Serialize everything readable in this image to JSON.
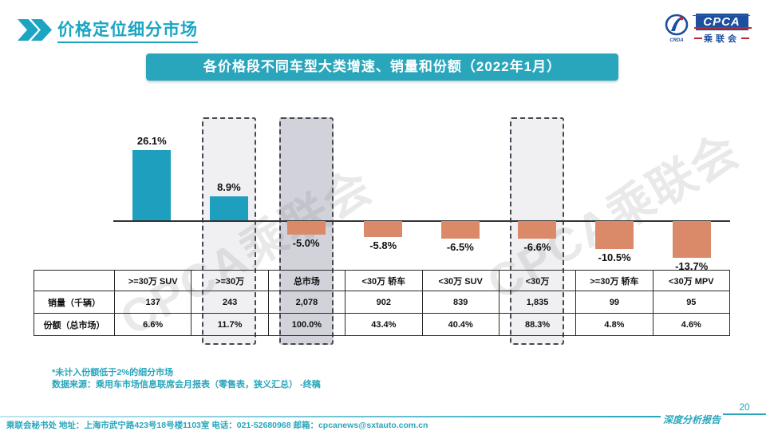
{
  "slide": {
    "title": "价格定位细分市场",
    "banner": "各价格段不同车型大类增速、销量和份额（2022年1月）",
    "watermark": "CPCA乘联会",
    "page_number": "20",
    "report_label": "深度分析报告"
  },
  "logo": {
    "emblem_text": "CRDA",
    "cpca": "CPCA",
    "cn": "乘联会"
  },
  "chart_data": {
    "type": "bar",
    "title": "各价格段不同车型大类增速、销量和份额（2022年1月）",
    "categories": [
      ">=30万 SUV",
      ">=30万",
      "总市场",
      "<30万 轿车",
      "<30万 SUV",
      "<30万",
      ">=30万 轿车",
      "<30万 MPV"
    ],
    "series": [
      {
        "name": "增速",
        "values": [
          26.1,
          8.9,
          -5.0,
          -5.8,
          -6.5,
          -6.6,
          -10.5,
          -13.7
        ],
        "labels": [
          "26.1%",
          "8.9%",
          "-5.0%",
          "-5.8%",
          "-6.5%",
          "-6.6%",
          "-10.5%",
          "-13.7%"
        ]
      },
      {
        "name": "销量（千辆）",
        "values": [
          137,
          243,
          2078,
          902,
          839,
          1835,
          99,
          95
        ]
      },
      {
        "name": "份额（总市场）",
        "values": [
          6.6,
          11.7,
          100.0,
          43.4,
          40.4,
          88.3,
          4.8,
          4.6
        ]
      }
    ],
    "highlights": [
      {
        "category": ">=30万",
        "index": 1,
        "fill": "#F0F0F3"
      },
      {
        "category": "总市场",
        "index": 2,
        "fill": "#D2D2DB"
      },
      {
        "category": "<30万",
        "index": 5,
        "fill": "#F0F0F3"
      }
    ],
    "colors": {
      "positive": "#1F9FBE",
      "negative": "#DB8A69"
    },
    "ylim": [
      -15,
      30
    ],
    "grid": false,
    "legend": false
  },
  "table": {
    "headers": [
      "",
      ">=30万 SUV",
      ">=30万",
      "总市场",
      "<30万 轿车",
      "<30万 SUV",
      "<30万",
      ">=30万 轿车",
      "<30万 MPV"
    ],
    "rows": [
      {
        "label": "销量（千辆）",
        "values": [
          "137",
          "243",
          "2,078",
          "902",
          "839",
          "1,835",
          "99",
          "95"
        ]
      },
      {
        "label": "份额（总市场）",
        "values": [
          "6.6%",
          "11.7%",
          "100.0%",
          "43.4%",
          "40.4%",
          "88.3%",
          "4.8%",
          "4.6%"
        ]
      }
    ]
  },
  "footnotes": [
    "*未计入份额低于2%的细分市场",
    "数据来源：乘用车市场信息联席会月报表（零售表，狭义汇总） -终稿"
  ],
  "footer": {
    "left": "乘联会秘书处   地址：上海市武宁路423号18号楼1103室  电话：021-52680968   邮箱：cpcanews@sxtauto.com.cn"
  }
}
